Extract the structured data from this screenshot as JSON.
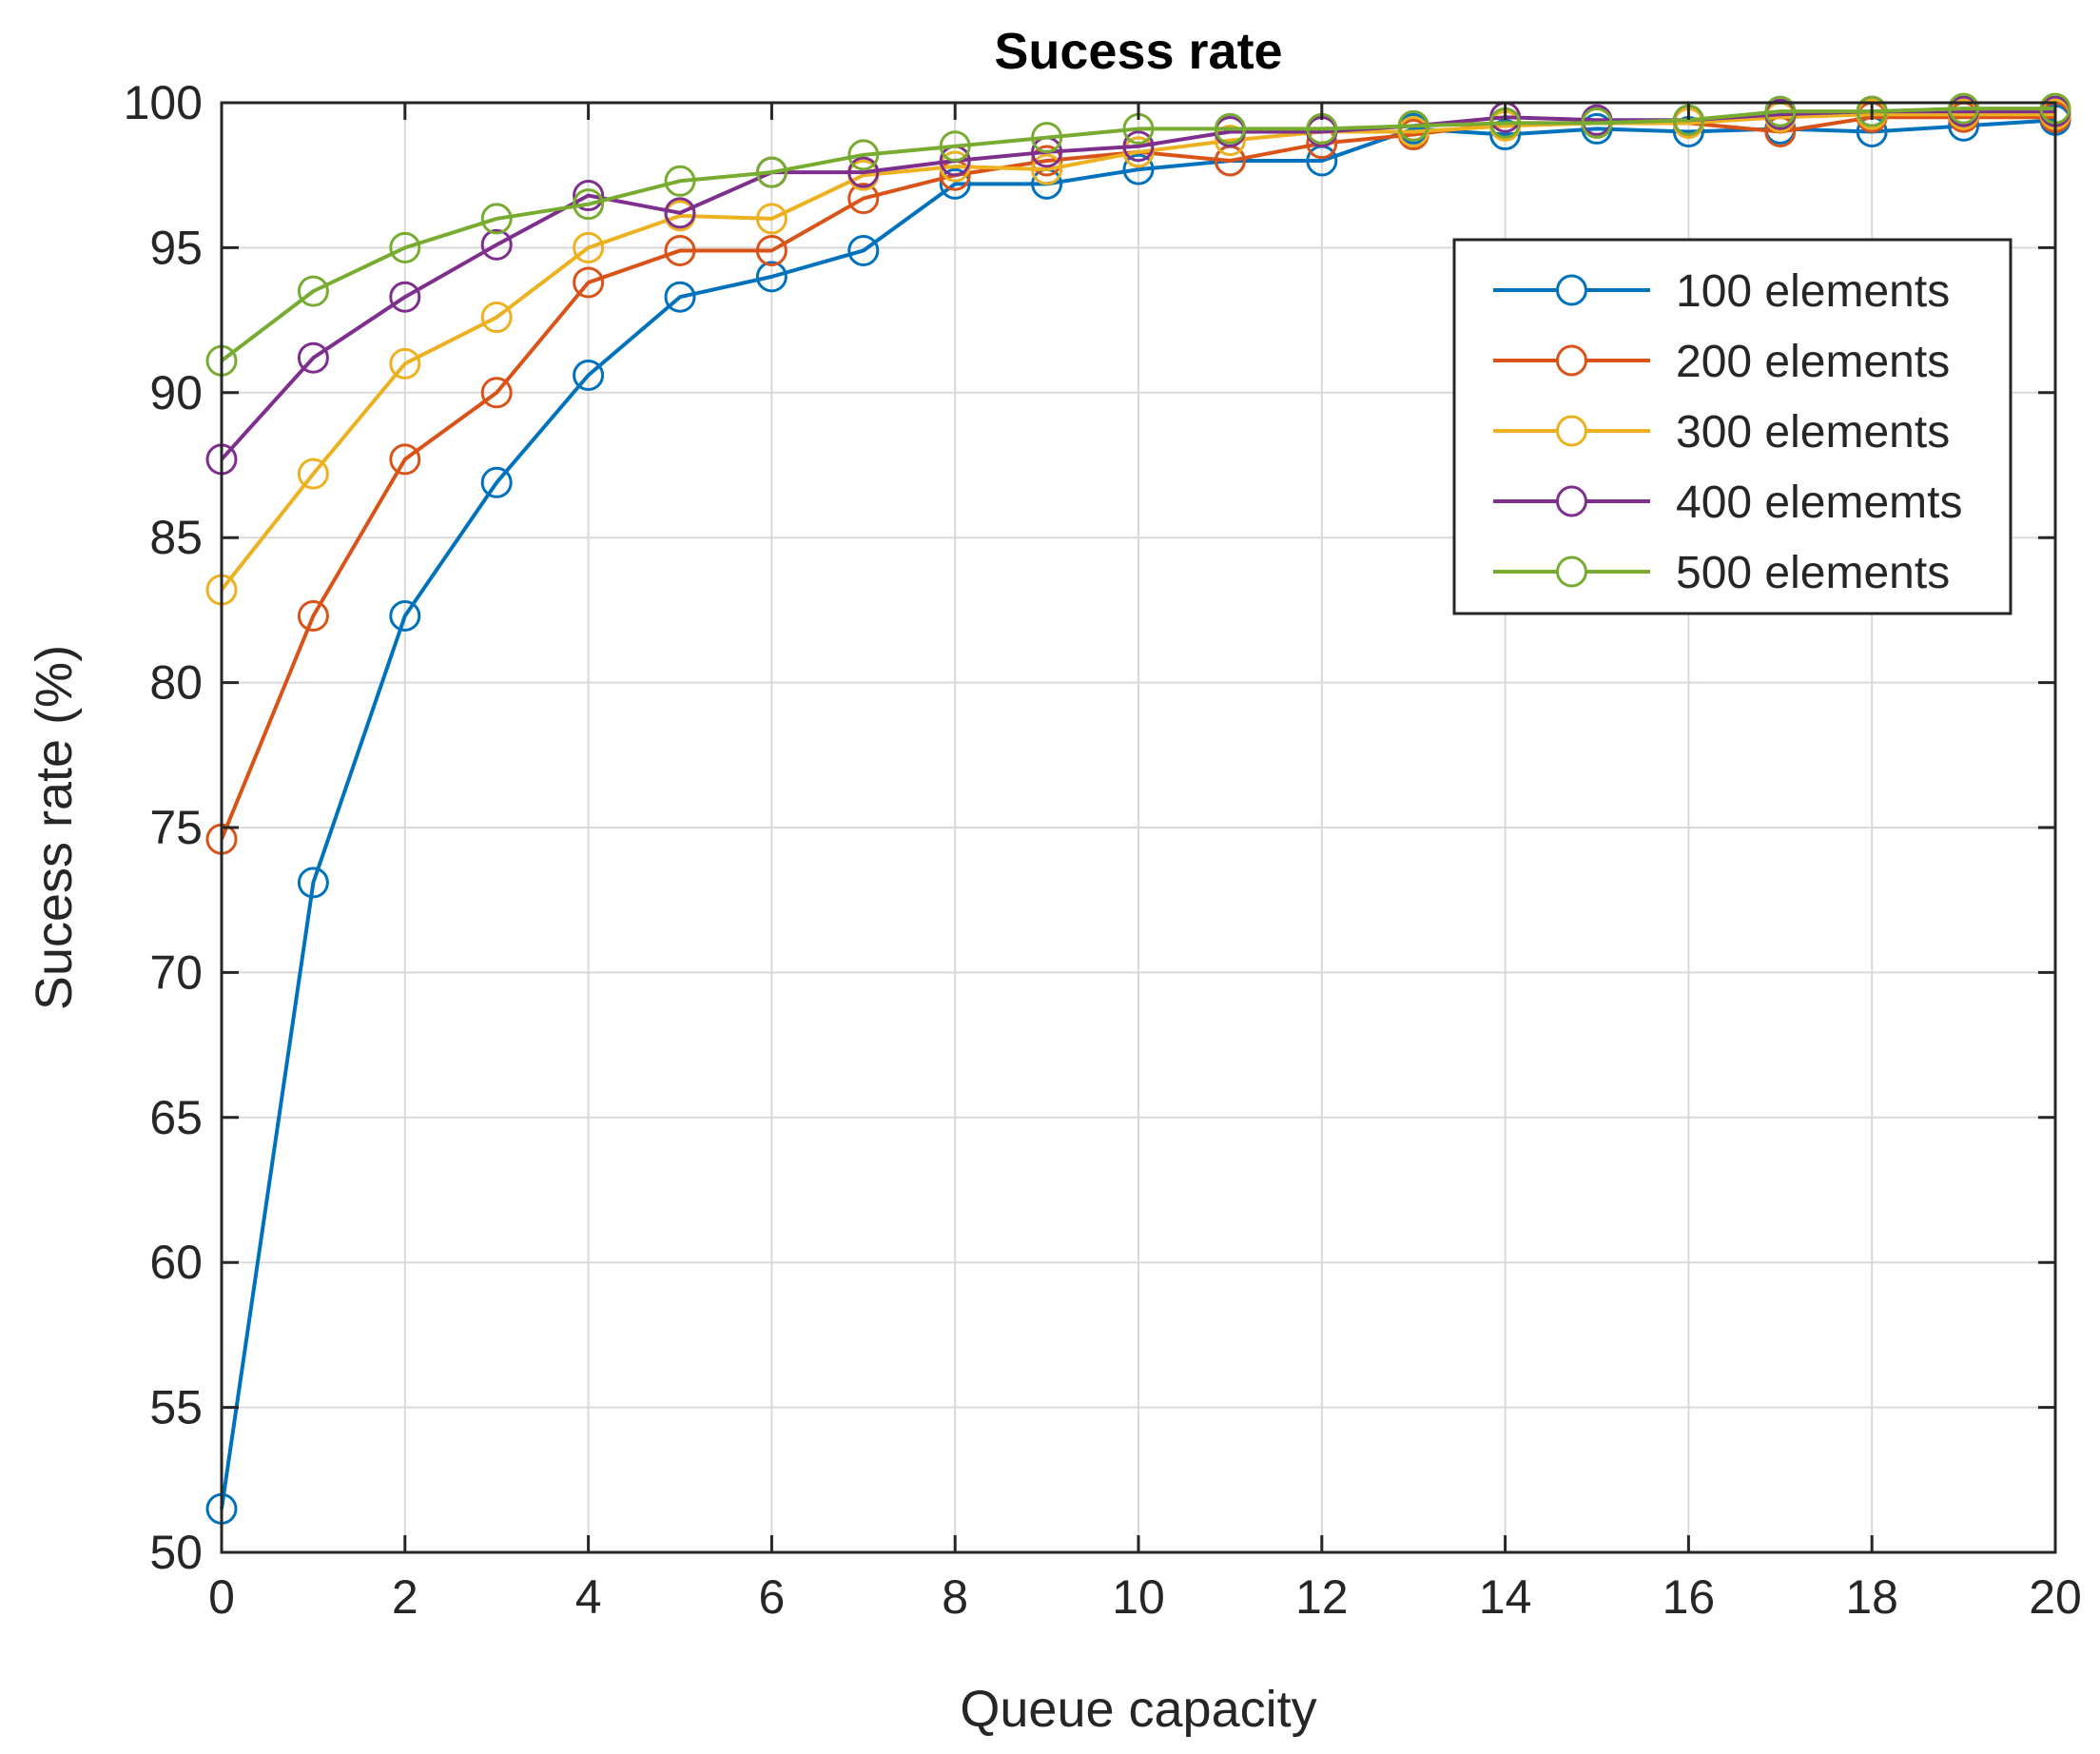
{
  "chart_data": {
    "type": "line",
    "title": "Sucess rate",
    "xlabel": "Queue capacity",
    "ylabel": "Sucess rate (%)",
    "xlim": [
      0,
      20
    ],
    "ylim": [
      50,
      100
    ],
    "xticks": [
      0,
      2,
      4,
      6,
      8,
      10,
      12,
      14,
      16,
      18,
      20
    ],
    "yticks": [
      50,
      55,
      60,
      65,
      70,
      75,
      80,
      85,
      90,
      95,
      100
    ],
    "grid": true,
    "legend_position": "top-right",
    "marker": "circle-open",
    "x": [
      0,
      1,
      2,
      3,
      4,
      5,
      6,
      7,
      8,
      9,
      10,
      11,
      12,
      13,
      14,
      15,
      16,
      17,
      18,
      19,
      20
    ],
    "series": [
      {
        "name": "100 elements",
        "color": "#0072BD",
        "values": [
          51.5,
          73.1,
          82.3,
          86.9,
          90.6,
          93.3,
          94.0,
          94.9,
          97.2,
          97.2,
          97.7,
          98.0,
          98.0,
          99.1,
          98.9,
          99.1,
          99.0,
          99.1,
          99.0,
          99.2,
          99.4
        ]
      },
      {
        "name": "200 elements",
        "color": "#D95319",
        "values": [
          74.6,
          82.3,
          87.7,
          90.0,
          93.8,
          94.9,
          94.9,
          96.7,
          97.5,
          98.0,
          98.3,
          98.0,
          98.6,
          98.9,
          99.3,
          99.3,
          99.3,
          99.0,
          99.5,
          99.5,
          99.5
        ]
      },
      {
        "name": "300 elements",
        "color": "#EDB120",
        "values": [
          83.2,
          87.2,
          91.0,
          92.6,
          95.0,
          96.1,
          96.0,
          97.5,
          97.8,
          97.7,
          98.3,
          98.7,
          99.0,
          99.0,
          99.2,
          99.3,
          99.3,
          99.5,
          99.6,
          99.6,
          99.6
        ]
      },
      {
        "name": "400 elememts",
        "color": "#7E2F8E",
        "values": [
          87.7,
          91.2,
          93.3,
          95.1,
          96.8,
          96.2,
          97.6,
          97.6,
          98.0,
          98.3,
          98.5,
          99.0,
          99.0,
          99.2,
          99.5,
          99.4,
          99.4,
          99.6,
          99.7,
          99.7,
          99.7
        ]
      },
      {
        "name": "500 elements",
        "color": "#77AC30",
        "values": [
          91.1,
          93.5,
          95.0,
          96.0,
          96.5,
          97.3,
          97.6,
          98.2,
          98.5,
          98.8,
          99.1,
          99.1,
          99.1,
          99.2,
          99.3,
          99.3,
          99.4,
          99.7,
          99.7,
          99.8,
          99.8
        ]
      }
    ]
  }
}
